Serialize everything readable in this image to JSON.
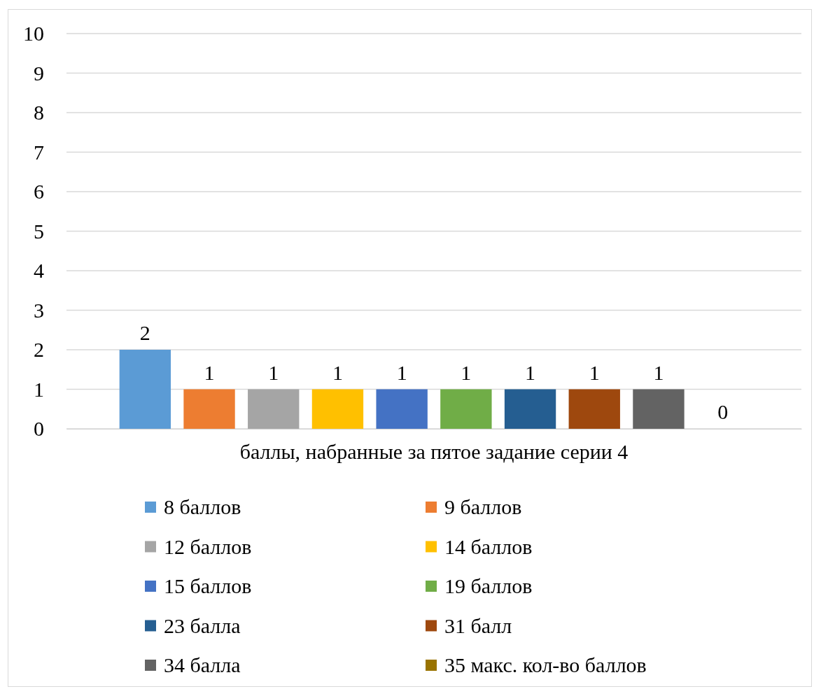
{
  "chart_data": {
    "type": "bar",
    "xlabel": null,
    "categories": [
      "баллы, набранные за пятое задание серии 4"
    ],
    "series": [
      {
        "name": "8 баллов",
        "color": "#5b9bd5",
        "values": [
          2
        ]
      },
      {
        "name": "9 баллов",
        "color": "#ed7d31",
        "values": [
          1
        ]
      },
      {
        "name": "12 баллов",
        "color": "#a5a5a5",
        "values": [
          1
        ]
      },
      {
        "name": "14 баллов",
        "color": "#ffc000",
        "values": [
          1
        ]
      },
      {
        "name": "15 баллов",
        "color": "#4472c4",
        "values": [
          1
        ]
      },
      {
        "name": "19 баллов",
        "color": "#70ad47",
        "values": [
          1
        ]
      },
      {
        "name": "23 балла",
        "color": "#255e91",
        "values": [
          1
        ]
      },
      {
        "name": "31 балл",
        "color": "#9e480e",
        "values": [
          1
        ]
      },
      {
        "name": "34 балла",
        "color": "#636363",
        "values": [
          1
        ]
      },
      {
        "name": "35 макс. кол-во баллов",
        "color": "#997300",
        "values": [
          0
        ]
      }
    ],
    "ylim": [
      0,
      10
    ],
    "yticks": [
      0,
      1,
      2,
      3,
      4,
      5,
      6,
      7,
      8,
      9,
      10
    ],
    "grid": "y",
    "data_labels": true,
    "legend": "bottom"
  }
}
